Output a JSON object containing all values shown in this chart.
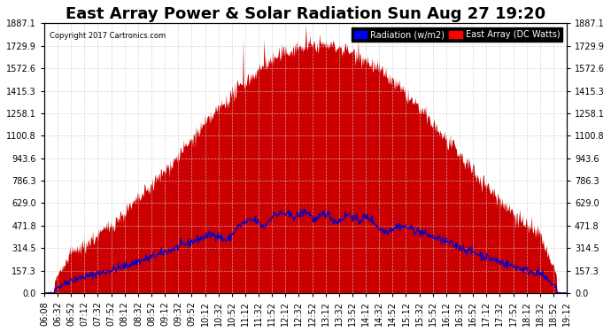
{
  "title": "East Array Power & Solar Radiation Sun Aug 27 19:20",
  "copyright": "Copyright 2017 Cartronics.com",
  "legend_labels": [
    "Radiation (w/m2)",
    "East Array (DC Watts)"
  ],
  "legend_colors": [
    "blue",
    "red"
  ],
  "ylabel_right_ticks": [
    0.0,
    157.3,
    314.5,
    471.8,
    629.0,
    786.3,
    943.6,
    1100.8,
    1258.1,
    1415.3,
    1572.6,
    1729.9,
    1887.1
  ],
  "ymax": 1887.1,
  "ymin": 0.0,
  "background_color": "#ffffff",
  "plot_bg_color": "#ffffff",
  "grid_color": "#cccccc",
  "title_fontsize": 13,
  "tick_fontsize": 7,
  "x_tick_labels": [
    "06:08",
    "06:32",
    "06:52",
    "07:12",
    "07:32",
    "07:52",
    "08:12",
    "08:32",
    "08:52",
    "09:12",
    "09:32",
    "09:52",
    "10:12",
    "10:32",
    "10:52",
    "11:12",
    "11:32",
    "11:52",
    "12:12",
    "12:32",
    "12:52",
    "13:12",
    "13:32",
    "13:52",
    "14:12",
    "14:32",
    "14:52",
    "15:12",
    "15:32",
    "15:52",
    "16:12",
    "16:32",
    "16:52",
    "17:12",
    "17:32",
    "17:52",
    "18:12",
    "18:32",
    "18:52",
    "19:12"
  ],
  "red_fill_color": "#cc0000",
  "blue_line_color": "#0000cc"
}
